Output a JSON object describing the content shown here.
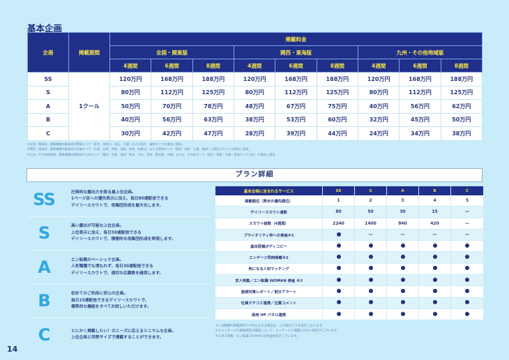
{
  "section_title": "基本企画",
  "price_table": {
    "header": {
      "plan": "企画",
      "period": "掲載期間",
      "fee": "掲載料金",
      "regions": [
        "全国・関東版",
        "関西・東海版",
        "九州・その他地域版"
      ],
      "weeks": [
        "4週間",
        "6週間",
        "8週間"
      ]
    },
    "period_value": "1クール",
    "rows": [
      {
        "plan": "SS",
        "prices": [
          "120万円",
          "168万円",
          "188万円",
          "120万円",
          "168万円",
          "188万円",
          "120万円",
          "168万円",
          "188万円"
        ]
      },
      {
        "plan": "S",
        "prices": [
          "80万円",
          "112万円",
          "125万円",
          "80万円",
          "112万円",
          "125万円",
          "80万円",
          "112万円",
          "125万円"
        ]
      },
      {
        "plan": "A",
        "prices": [
          "50万円",
          "70万円",
          "78万円",
          "48万円",
          "67万円",
          "75万円",
          "40万円",
          "56万円",
          "62万円"
        ]
      },
      {
        "plan": "B",
        "prices": [
          "40万円",
          "56万円",
          "63万円",
          "38万円",
          "53万円",
          "60万円",
          "32万円",
          "45万円",
          "50万円"
        ]
      },
      {
        "plan": "C",
        "prices": [
          "30万円",
          "42万円",
          "47万円",
          "28万円",
          "39万円",
          "44万円",
          "24万円",
          "34万円",
          "38万円"
        ]
      }
    ],
    "notes": [
      "※全国・関東版…募集職種の勤務地が関東エリア（東京、神奈川、埼玉、千葉）および国外、複数エリアの場合に適用。",
      "※関西・東海版…募集職種の勤務地が近畿エリア（大阪、兵庫、京都、滋賀、奈良、和歌山）または東海エリア（愛知、岐阜、三重、静岡）に限定されている場合に適用。",
      "※九州・その他地域版…募集職種の勤務地が九州エリア（福岡、佐賀、長崎、熊本、大分、宮崎、鹿児島、沖縄）または、その他エリア（国外・関東・近畿・東海エリア以外）の場合に適用。"
    ]
  },
  "plan_detail": {
    "title": "プラン詳細",
    "plans": [
      {
        "letter": "SS",
        "lines": [
          "圧倒的な露出力を誇る最上位企画。",
          "1ページ目への優先表示に加え、毎日80通配信できる",
          "デイリースカウトで、母集団形成を最大化します。"
        ]
      },
      {
        "letter": "S",
        "lines": [
          "高い露出が可能な上位企画。",
          "上位表示に加え、毎日50通配信できる",
          "デイリースカウトで、積極的な母集団形成を実現します。"
        ]
      },
      {
        "letter": "A",
        "lines": [
          "エン転職のベーシック企画。",
          "人気職種でも埋もれず、毎日30通配信できる",
          "デイリースカウトで、適切な応募数を確保します。"
        ]
      },
      {
        "letter": "B",
        "lines": [
          "初めてのご利用に安心の企画。",
          "毎日15通配信できるデイリースカウトで、",
          "標準的な機能をすべてお試しいただけます。"
        ]
      },
      {
        "letter": "C",
        "lines": [
          "とにかく掲載したい！のニーズに応えるミニマムな企画。",
          "上位企画と同等サイズで掲載することができます。"
        ]
      }
    ],
    "service_table": {
      "headers": [
        "基本企画に含まれるサービス",
        "SS",
        "S",
        "A",
        "B",
        "C"
      ],
      "rows": [
        {
          "label": "掲載順位（表示の優先順位）",
          "values": [
            "1",
            "2",
            "3",
            "4",
            "5"
          ]
        },
        {
          "label": "デイリースカウト通数",
          "values": [
            "80",
            "50",
            "30",
            "15",
            "—"
          ]
        },
        {
          "label": "スカウト総数（4週間）",
          "values": [
            "2240",
            "1400",
            "840",
            "420",
            "—"
          ]
        },
        {
          "label": "プライオリティ枠への参画※1",
          "values": [
            "●",
            "—",
            "—",
            "—",
            "—"
          ]
        },
        {
          "label": "基本原稿ボディコピー",
          "values": [
            "●",
            "●",
            "●",
            "●",
            "●"
          ]
        },
        {
          "label": "エンゲージ同時掲載※2",
          "values": [
            "●",
            "●",
            "●",
            "●",
            "●"
          ]
        },
        {
          "label": "気になる人材マッチング",
          "values": [
            "●",
            "●",
            "●",
            "●",
            "●"
          ]
        },
        {
          "label": "求人特集／エン転職 WOMAN 参画 ※3",
          "values": [
            "●",
            "●",
            "●",
            "●",
            "●"
          ]
        },
        {
          "label": "面接対策レポート／前日アラート",
          "values": [
            "●",
            "●",
            "●",
            "●",
            "●"
          ]
        },
        {
          "label": "社員クチコミ連携／企業コメント",
          "values": [
            "●",
            "●",
            "●",
            "●",
            "●"
          ]
        },
        {
          "label": "採用 HP パネル連携",
          "values": [
            "●",
            "●",
            "●",
            "●",
            "●"
          ]
        }
      ],
      "notes": [
        "※１同職種の掲載案件が６件以上ある場合は、入れ替わりでの表示となります。",
        "※２エンゲージの掲載規定の審査によって、エンゲージに掲載されない場合がございます。",
        "※３求人特集・エン転職 WOMAN は参画規定がございます。"
      ]
    }
  },
  "page_number": "14",
  "colors": {
    "navy": "#1f2f8a",
    "yellow": "#f3e34a",
    "accent_blue": "#30a7e3",
    "background": "#c9ecfa"
  }
}
